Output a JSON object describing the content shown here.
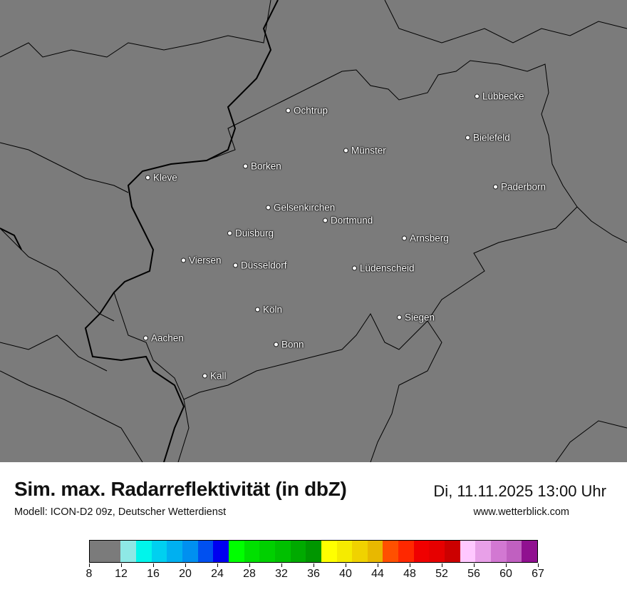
{
  "map": {
    "background_color": "#7b7b7b",
    "cities": [
      "Lübbecke",
      "Ochtrup",
      "Bielefeld",
      "Münster",
      "Borken",
      "Kleve",
      "Paderborn",
      "Gelsenkirchen",
      "Dortmund",
      "Duisburg",
      "Arnsberg",
      "Viersen",
      "Düsseldorf",
      "Lüdenscheid",
      "Köln",
      "Siegen",
      "Aachen",
      "Bonn",
      "Kall"
    ]
  },
  "header": {
    "title": "Sim. max. Radarreflektivität (in dbZ)",
    "subtitle": "Modell: ICON-D2 09z, Deutscher Wetterdienst",
    "datetime": "Di, 11.11.2025 13:00 Uhr",
    "website": "www.wetterblick.com"
  },
  "colorbar": {
    "unit": "dbZ",
    "colors": [
      "#7b7b7b",
      "#8ee8e5",
      "#00f5eb",
      "#00d0f0",
      "#00b0f0",
      "#0090f0",
      "#0050f0",
      "#0000f0",
      "#00ff00",
      "#00e000",
      "#00d000",
      "#00c000",
      "#00aa00",
      "#009600",
      "#ffff00",
      "#f5eb00",
      "#f0d200",
      "#e8b800",
      "#ff5000",
      "#ff2800",
      "#f00000",
      "#e60000",
      "#cc0000",
      "#ffc8ff",
      "#e8a0e8",
      "#d278d2",
      "#c060c0",
      "#901090"
    ],
    "tick_labels": [
      "8",
      "12",
      "16",
      "20",
      "24",
      "28",
      "32",
      "36",
      "40",
      "44",
      "48",
      "52",
      "56",
      "60",
      "67"
    ]
  }
}
